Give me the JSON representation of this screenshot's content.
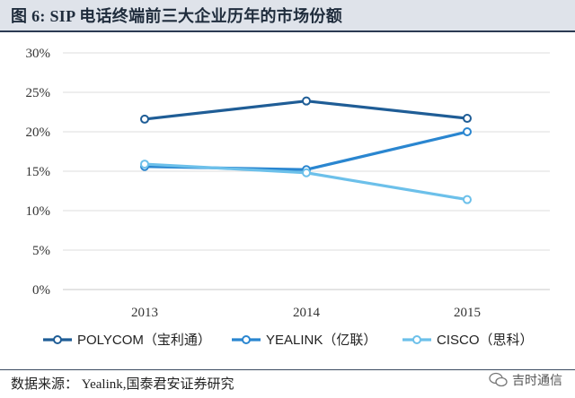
{
  "figure": {
    "title": "图 6:  SIP 电话终端前三大企业历年的市场份额",
    "source": "数据来源：  Yealink,国泰君安证券研究",
    "watermark": "吉时通信"
  },
  "chart_data": {
    "type": "line",
    "categories": [
      "2013",
      "2014",
      "2015"
    ],
    "ylim": [
      0,
      30
    ],
    "yticks": [
      "0%",
      "5%",
      "10%",
      "15%",
      "20%",
      "25%",
      "30%"
    ],
    "grid": true,
    "legend_position": "bottom",
    "series": [
      {
        "name": "POLYCOM（宝利通）",
        "values": [
          21.6,
          23.9,
          21.7
        ],
        "color": "#1f5d96"
      },
      {
        "name": "YEALINK（亿联）",
        "values": [
          15.6,
          15.2,
          20.0
        ],
        "color": "#2a86d0"
      },
      {
        "name": "CISCO（思科）",
        "values": [
          15.9,
          14.8,
          11.4
        ],
        "color": "#6cc0ea"
      }
    ]
  }
}
